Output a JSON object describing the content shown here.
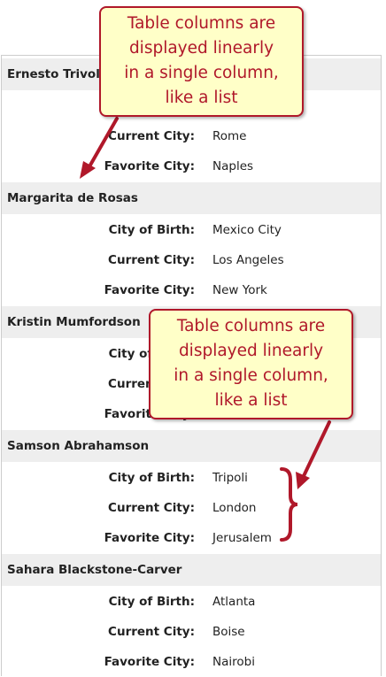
{
  "people": [
    {
      "name": "Ernesto Trivoli",
      "rows": [
        null,
        {
          "label": "Current City:",
          "value": "Rome"
        },
        {
          "label": "Favorite City:",
          "value": "Naples"
        }
      ]
    },
    {
      "name": "Margarita de Rosas",
      "rows": [
        {
          "label": "City of Birth:",
          "value": "Mexico City"
        },
        {
          "label": "Current City:",
          "value": "Los Angeles"
        },
        {
          "label": "Favorite City:",
          "value": "New York"
        }
      ]
    },
    {
      "name": "Kristin Mumfordson",
      "rows": [
        {
          "label": "City of Birth:"
        },
        {
          "label": "Current City:"
        },
        {
          "label": "Favorite City:"
        }
      ]
    },
    {
      "name": "Samson Abrahamson",
      "rows": [
        {
          "label": "City of Birth:",
          "value": "Tripoli"
        },
        {
          "label": "Current City:",
          "value": "London"
        },
        {
          "label": "Favorite City:",
          "value": "Jerusalem"
        }
      ]
    },
    {
      "name": "Sahara Blackstone-Carver",
      "rows": [
        {
          "label": "City of Birth:",
          "value": "Atlanta"
        },
        {
          "label": "Current City:",
          "value": "Boise"
        },
        {
          "label": "Favorite City:",
          "value": "Nairobi"
        }
      ]
    }
  ],
  "callouts": [
    {
      "lines": [
        "Table columns are",
        "displayed linearly",
        "in a single column,",
        "like a list"
      ]
    },
    {
      "lines": [
        "Table columns are",
        "displayed linearly",
        "in a single column,",
        "like a list"
      ]
    }
  ]
}
